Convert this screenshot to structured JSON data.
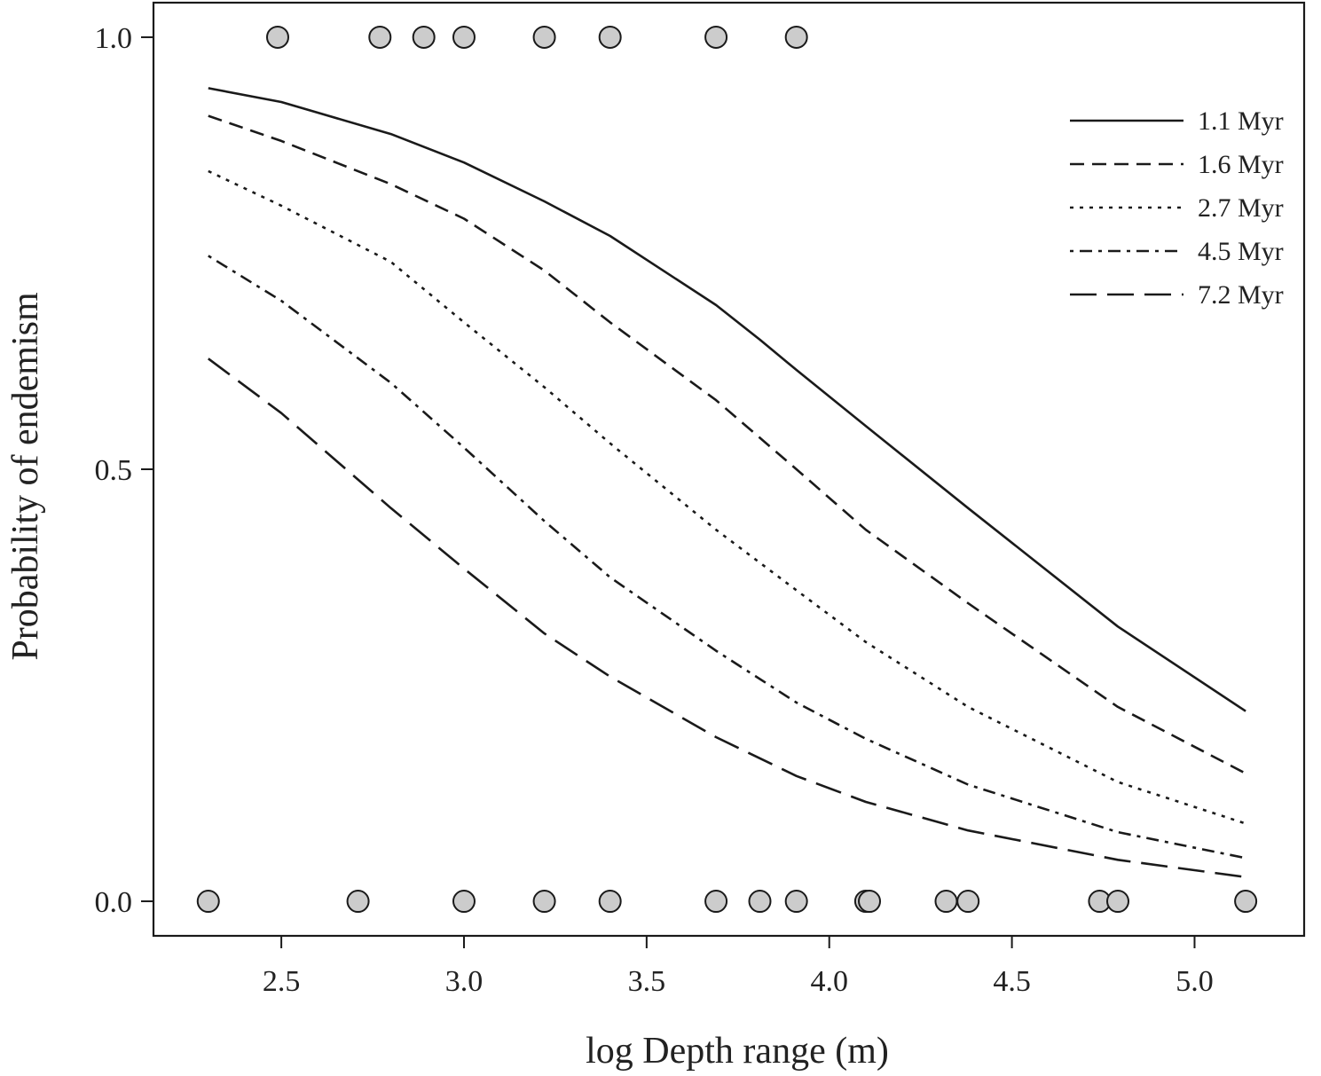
{
  "chart_data": {
    "type": "line",
    "title": "",
    "xlabel": "log Depth range (m)",
    "ylabel": "Probability of endemism",
    "xlim": [
      2.15,
      5.3
    ],
    "ylim": [
      -0.04,
      1.04
    ],
    "x_ticks": [
      2.5,
      3.0,
      3.5,
      4.0,
      4.5,
      5.0
    ],
    "x_tick_labels": [
      "2.5",
      "3.0",
      "3.5",
      "4.0",
      "4.5",
      "5.0"
    ],
    "y_ticks": [
      0.0,
      0.5,
      1.0
    ],
    "y_tick_labels": [
      "0.0",
      "0.5",
      "1.0"
    ],
    "grid": false,
    "legend_position": "top-right",
    "series": [
      {
        "name": "1.1 Myr",
        "style": "solid",
        "x": [
          2.3,
          2.5,
          2.8,
          3.0,
          3.22,
          3.4,
          3.69,
          3.81,
          3.91,
          4.1,
          4.38,
          4.79,
          5.14
        ],
        "y": [
          0.941,
          0.925,
          0.888,
          0.855,
          0.81,
          0.77,
          0.69,
          0.65,
          0.615,
          0.55,
          0.455,
          0.318,
          0.22
        ]
      },
      {
        "name": "1.6 Myr",
        "style": "dashed",
        "x": [
          2.3,
          2.5,
          2.8,
          3.0,
          3.22,
          3.4,
          3.69,
          3.91,
          4.1,
          4.38,
          4.79,
          5.14
        ],
        "y": [
          0.909,
          0.88,
          0.83,
          0.79,
          0.73,
          0.67,
          0.58,
          0.5,
          0.43,
          0.345,
          0.225,
          0.148
        ]
      },
      {
        "name": "2.7 Myr",
        "style": "dotted",
        "x": [
          2.3,
          2.5,
          2.8,
          3.0,
          3.22,
          3.4,
          3.69,
          3.91,
          4.1,
          4.38,
          4.79,
          5.14
        ],
        "y": [
          0.845,
          0.805,
          0.74,
          0.67,
          0.595,
          0.53,
          0.43,
          0.36,
          0.3,
          0.225,
          0.138,
          0.09
        ]
      },
      {
        "name": "4.5 Myr",
        "style": "dot-dash",
        "x": [
          2.3,
          2.5,
          2.8,
          3.0,
          3.22,
          3.4,
          3.69,
          3.91,
          4.1,
          4.38,
          4.79,
          5.14
        ],
        "y": [
          0.747,
          0.695,
          0.6,
          0.525,
          0.44,
          0.375,
          0.29,
          0.23,
          0.188,
          0.135,
          0.08,
          0.05
        ]
      },
      {
        "name": "7.2 Myr",
        "style": "long-dash",
        "x": [
          2.3,
          2.5,
          2.8,
          3.0,
          3.22,
          3.4,
          3.69,
          3.91,
          4.1,
          4.38,
          4.79,
          5.14
        ],
        "y": [
          0.628,
          0.565,
          0.455,
          0.385,
          0.31,
          0.26,
          0.19,
          0.145,
          0.115,
          0.082,
          0.048,
          0.028
        ]
      }
    ],
    "observations": {
      "name": "",
      "style": "grey-filled-circle",
      "endemic_x": [
        2.49,
        2.77,
        2.89,
        3.0,
        3.22,
        3.4,
        3.69,
        3.91
      ],
      "endemic_y": 1.0,
      "non_endemic_x": [
        2.3,
        2.71,
        3.0,
        3.22,
        3.4,
        3.69,
        3.81,
        3.91,
        4.1,
        4.11,
        4.32,
        4.38,
        4.74,
        4.79,
        5.14
      ],
      "non_endemic_y": 0.0
    },
    "colors": {
      "line": "#1a1a1a",
      "point_fill": "#cccccc",
      "point_stroke": "#1a1a1a",
      "frame": "#1a1a1a"
    }
  }
}
